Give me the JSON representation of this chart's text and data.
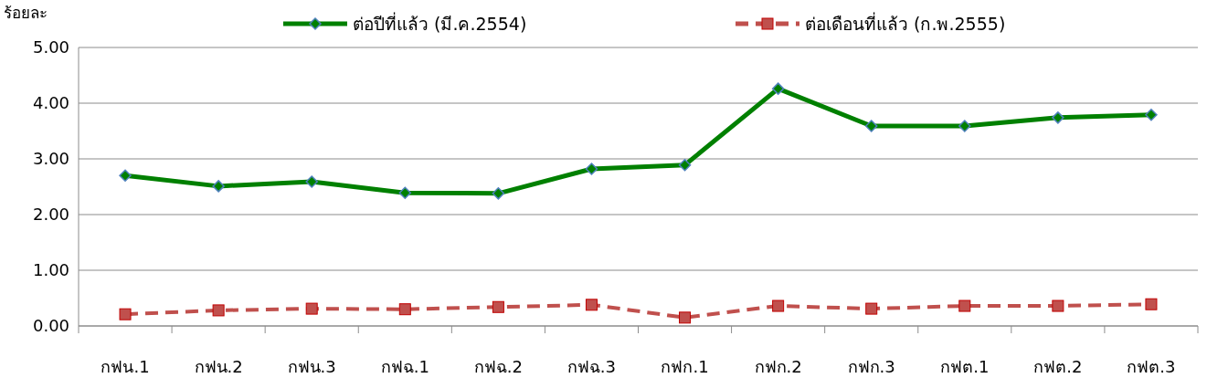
{
  "chart_data": {
    "type": "line",
    "ylabel": "ร้อยละ",
    "categories": [
      "กฟน.1",
      "กฟน.2",
      "กฟน.3",
      "กฟฉ.1",
      "กฟฉ.2",
      "กฟฉ.3",
      "กฟก.1",
      "กฟก.2",
      "กฟก.3",
      "กฟต.1",
      "กฟต.2",
      "กฟต.3"
    ],
    "series": [
      {
        "name": "ต่อปีที่แล้ว (มี.ค.2554)",
        "color": "#008000",
        "marker": "diamond",
        "line_style": "solid",
        "values": [
          2.7,
          2.51,
          2.59,
          2.39,
          2.38,
          2.82,
          2.89,
          4.26,
          3.59,
          3.59,
          3.74,
          3.79
        ]
      },
      {
        "name": "ต่อเดือนที่แล้ว (ก.พ.2555)",
        "color": "#c0504d",
        "marker": "square",
        "line_style": "dashed",
        "values": [
          0.21,
          0.28,
          0.31,
          0.3,
          0.34,
          0.38,
          0.15,
          0.36,
          0.31,
          0.36,
          0.36,
          0.39
        ]
      }
    ],
    "ylim": [
      0,
      5
    ],
    "yticks": [
      {
        "value": 0,
        "label": "0.00"
      },
      {
        "value": 1,
        "label": "1.00"
      },
      {
        "value": 2,
        "label": "2.00"
      },
      {
        "value": 3,
        "label": "3.00"
      },
      {
        "value": 4,
        "label": "4.00"
      },
      {
        "value": 5,
        "label": "5.00"
      }
    ],
    "grid": "y",
    "legend": "top"
  }
}
